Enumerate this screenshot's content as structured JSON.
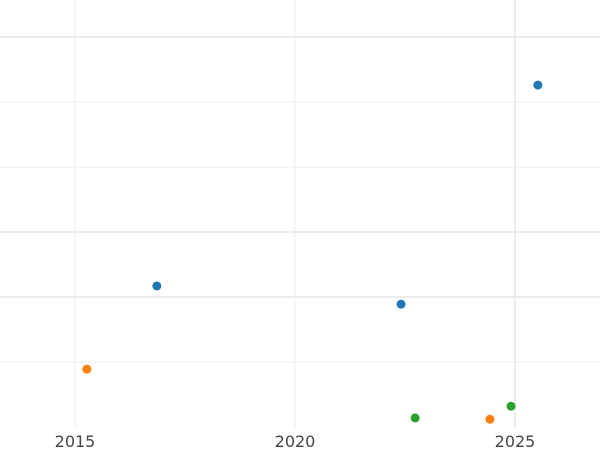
{
  "chart_data": {
    "type": "scatter",
    "title": "",
    "xlabel": "",
    "ylabel": "",
    "xlim": [
      2013.3,
      2026.9
    ],
    "ylim": [
      -0.35,
      6.6
    ],
    "grid": true,
    "x_ticks": [
      2015,
      2020,
      2025
    ],
    "x_tick_labels": [
      "2015",
      "2020",
      "2025"
    ],
    "y_gridlines": [
      1,
      2,
      3,
      4,
      5,
      6
    ],
    "y_tick_labels": [],
    "series": [
      {
        "color": "#1f77b4",
        "points": [
          [
            2025.52,
            5.26
          ],
          [
            2016.86,
            2.17
          ],
          [
            2022.41,
            1.89
          ]
        ]
      },
      {
        "color": "#ff7f0e",
        "points": [
          [
            2015.27,
            0.89
          ],
          [
            2024.43,
            0.12
          ]
        ]
      },
      {
        "color": "#2ca02c",
        "points": [
          [
            2022.73,
            0.14
          ],
          [
            2024.91,
            0.32
          ]
        ]
      }
    ]
  }
}
